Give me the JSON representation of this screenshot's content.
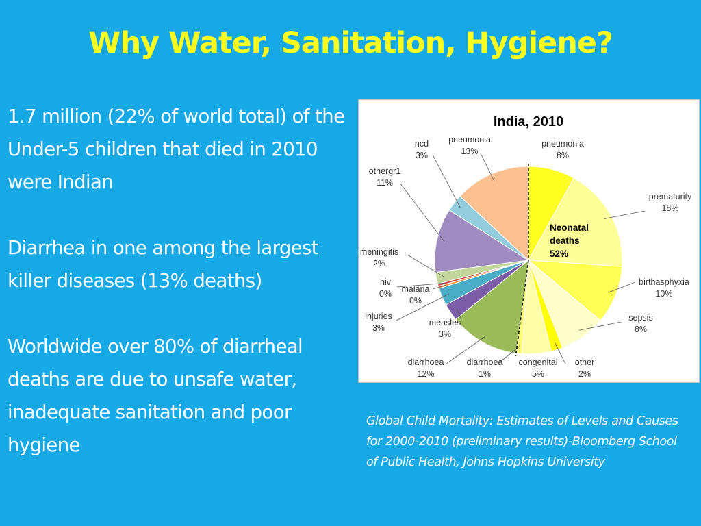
{
  "slide": {
    "title": "Why Water, Sanitation, Hygiene?",
    "paragraphs": [
      "1.7 million (22% of world total) of the Under-5 children that died in 2010 were Indian",
      "Diarrhea in one among the largest killer diseases (13% deaths)",
      "Worldwide over 80% of diarrheal deaths are due to unsafe water, inadequate sanitation and poor hygiene"
    ],
    "citation": "Global Child Mortality: Estimates of Levels and Causes for 2000-2010 (preliminary results)-Bloomberg School of Public Health, Johns Hopkins University"
  },
  "colors": {
    "background": "#17A8E6",
    "title": "#FFFF1E",
    "text": "#FFFFFF"
  },
  "chart_data": {
    "type": "pie",
    "title": "India, 2010",
    "start_angle_deg": 0,
    "direction": "clockwise",
    "slices": [
      {
        "name": "pneumonia",
        "value": 8,
        "pct_label": "8%",
        "color": "#FFFF22",
        "group": "neonatal"
      },
      {
        "name": "prematurity",
        "value": 18,
        "pct_label": "18%",
        "color": "#FFFF99",
        "group": "neonatal"
      },
      {
        "name": "birthasphyxia",
        "value": 10,
        "pct_label": "10%",
        "color": "#FFFF55",
        "group": "neonatal"
      },
      {
        "name": "sepsis",
        "value": 8,
        "pct_label": "8%",
        "color": "#FFFFCC",
        "group": "neonatal"
      },
      {
        "name": "other",
        "value": 2,
        "pct_label": "2%",
        "color": "#FFFF00",
        "group": "neonatal"
      },
      {
        "name": "congenital",
        "value": 5,
        "pct_label": "5%",
        "color": "#FFFFAA",
        "group": "neonatal"
      },
      {
        "name": "diarrhoea",
        "value": 1,
        "pct_label": "1%",
        "color": "#FFFF77",
        "group": "neonatal"
      },
      {
        "name": "diarrhoea",
        "value": 12,
        "pct_label": "12%",
        "color": "#9BBB59",
        "group": "postneonatal"
      },
      {
        "name": "measles",
        "value": 3,
        "pct_label": "3%",
        "color": "#7B5EA7",
        "group": "postneonatal"
      },
      {
        "name": "injuries",
        "value": 3,
        "pct_label": "3%",
        "color": "#4BACC6",
        "group": "postneonatal"
      },
      {
        "name": "malaria",
        "value": 0.4,
        "pct_label": "0%",
        "color": "#F79646",
        "group": "postneonatal"
      },
      {
        "name": "hiv",
        "value": 0.4,
        "pct_label": "0%",
        "color": "#C0504D",
        "group": "postneonatal"
      },
      {
        "name": "meningitis",
        "value": 2,
        "pct_label": "2%",
        "color": "#C3D69B",
        "group": "postneonatal"
      },
      {
        "name": "othergr1",
        "value": 11,
        "pct_label": "11%",
        "color": "#A08CC0",
        "group": "postneonatal"
      },
      {
        "name": "ncd",
        "value": 3,
        "pct_label": "3%",
        "color": "#93CDDD",
        "group": "postneonatal"
      },
      {
        "name": "pneumonia",
        "value": 13,
        "pct_label": "13%",
        "color": "#FAC090",
        "group": "postneonatal"
      }
    ],
    "annotation": {
      "lines": [
        "Neonatal",
        "deaths",
        "52%"
      ]
    }
  }
}
